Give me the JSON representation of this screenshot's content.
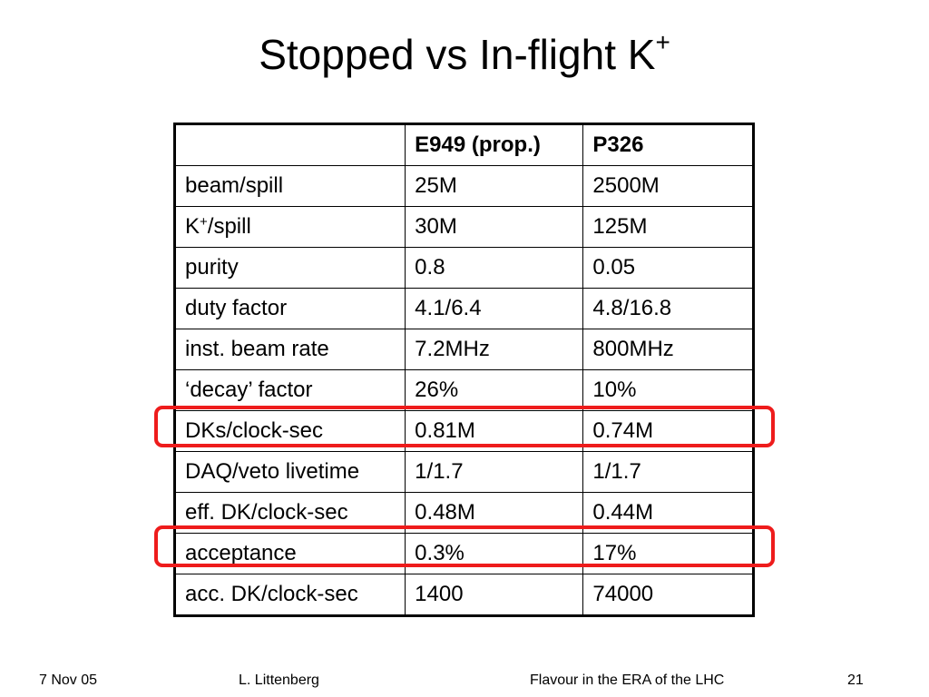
{
  "slide": {
    "title": "Stopped vs In-flight K",
    "title_superscript": "+"
  },
  "table": {
    "headers": [
      "",
      "E949 (prop.)",
      "P326"
    ],
    "rows": [
      {
        "label": "beam/spill",
        "e949": "25M",
        "p326": "2500M"
      },
      {
        "label": "K",
        "label_sup": "+",
        "label_rest": "/spill",
        "e949": "30M",
        "p326": "125M"
      },
      {
        "label": "purity",
        "e949": "0.8",
        "p326": "0.05"
      },
      {
        "label": "duty factor",
        "e949": "4.1/6.4",
        "p326": "4.8/16.8"
      },
      {
        "label": "inst. beam rate",
        "e949": "7.2MHz",
        "p326": "800MHz"
      },
      {
        "label": "‘decay’ factor",
        "e949": "26%",
        "p326": "10%"
      },
      {
        "label": "DKs/clock-sec",
        "e949": "0.81M",
        "p326": "0.74M",
        "highlighted": true
      },
      {
        "label": "DAQ/veto livetime",
        "e949": "1/1.7",
        "p326": "1/1.7"
      },
      {
        "label": "eff. DK/clock-sec",
        "e949": "0.48M",
        "p326": "0.44M"
      },
      {
        "label": "acceptance",
        "e949": "0.3%",
        "p326": "17%",
        "highlighted": true
      },
      {
        "label": "acc. DK/clock-sec",
        "e949": "1400",
        "p326": "74000"
      }
    ]
  },
  "highlight_color": "#ee1c1c",
  "footer": {
    "date": "7 Nov 05",
    "author": "L. Littenberg",
    "event": "Flavour in the ERA of the LHC",
    "page_number": "21"
  }
}
